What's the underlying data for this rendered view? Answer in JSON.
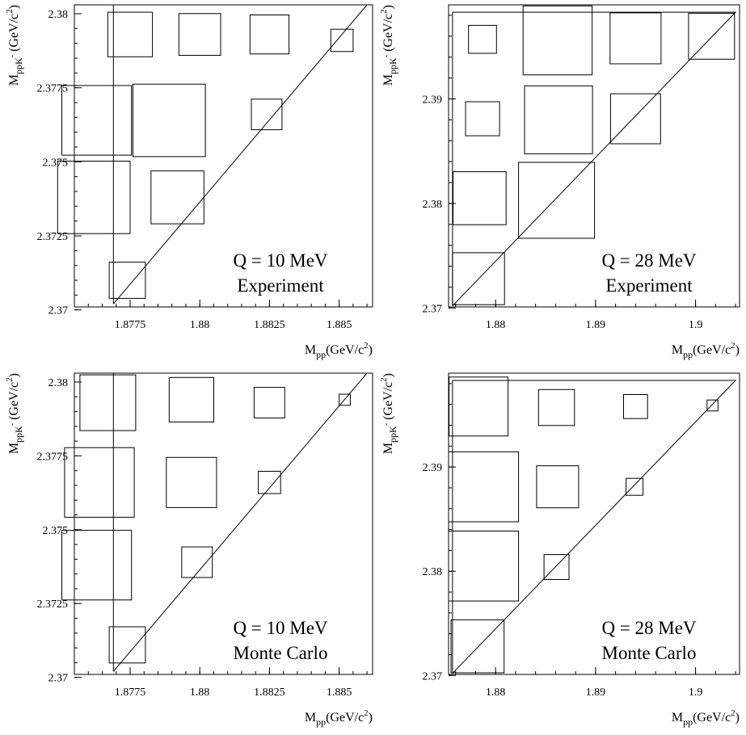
{
  "chart_data": [
    {
      "type": "box-histogram",
      "annotation_lines": [
        "Q = 10 MeV",
        "Experiment"
      ],
      "xlabel": {
        "base": "M",
        "sub": "pp",
        "rest": "(GeV/c",
        "sup": "2",
        "close": ")"
      },
      "ylabel": {
        "base": "M",
        "sub": "ppK",
        "subsup": "-",
        "rest": " (GeV/c",
        "sup": "2",
        "close": ")"
      },
      "xlim": [
        1.8755,
        1.8862
      ],
      "ylim": [
        2.3701,
        2.3803
      ],
      "x_ticks": [
        1.8775,
        1.88,
        1.8825,
        1.885
      ],
      "x_tick_labels": [
        "1.8775",
        "1.88",
        "1.8825",
        "1.885"
      ],
      "y_ticks": [
        2.37,
        2.3725,
        2.375,
        2.3775,
        2.38
      ],
      "y_tick_labels": [
        "2.37",
        "2.3725",
        "2.375",
        "2.3775",
        "2.38"
      ],
      "kinematic_boundary": {
        "x": [
          1.8769,
          1.886,
          1.8769,
          1.8769
        ],
        "y": [
          2.3702,
          2.3803,
          2.3803,
          2.3702
        ]
      },
      "boxes": [
        {
          "x": 1.8774,
          "y": 2.371,
          "size": 0.0013
        },
        {
          "x": 1.8762,
          "y": 2.3738,
          "size": 0.0026
        },
        {
          "x": 1.8763,
          "y": 2.3764,
          "size": 0.0025
        },
        {
          "x": 1.8789,
          "y": 2.3764,
          "size": 0.0026
        },
        {
          "x": 1.8792,
          "y": 2.3738,
          "size": 0.0019
        },
        {
          "x": 1.8775,
          "y": 2.3793,
          "size": 0.0016
        },
        {
          "x": 1.88,
          "y": 2.3793,
          "size": 0.0015
        },
        {
          "x": 1.8825,
          "y": 2.3793,
          "size": 0.0014
        },
        {
          "x": 1.8851,
          "y": 2.3791,
          "size": 0.0008
        },
        {
          "x": 1.8824,
          "y": 2.3766,
          "size": 0.0011
        }
      ]
    },
    {
      "type": "box-histogram",
      "annotation_lines": [
        "Q = 28 MeV",
        "Experiment"
      ],
      "xlabel": {
        "base": "M",
        "sub": "pp",
        "rest": "(GeV/c",
        "sup": "2",
        "close": ")"
      },
      "ylabel": {
        "base": "M",
        "sub": "ppK",
        "subsup": "-",
        "rest": " (GeV/c",
        "sup": "2",
        "close": ")"
      },
      "xlim": [
        1.8753,
        1.9044
      ],
      "ylim": [
        2.3701,
        2.399
      ],
      "x_ticks": [
        1.88,
        1.89,
        1.9
      ],
      "x_tick_labels": [
        "1.88",
        "1.89",
        "1.9"
      ],
      "y_ticks": [
        2.37,
        2.38,
        2.39
      ],
      "y_tick_labels": [
        "2.37",
        "2.38",
        "2.39"
      ],
      "kinematic_boundary": {
        "x": [
          1.8757,
          1.904,
          1.8757,
          1.8757
        ],
        "y": [
          2.3702,
          2.3983,
          2.3983,
          2.3702
        ]
      },
      "boxes": [
        {
          "x": 1.8783,
          "y": 2.3728,
          "size": 0.0052
        },
        {
          "x": 1.8784,
          "y": 2.3805,
          "size": 0.0053
        },
        {
          "x": 1.8787,
          "y": 2.3881,
          "size": 0.0034
        },
        {
          "x": 1.8787,
          "y": 2.3957,
          "size": 0.0028
        },
        {
          "x": 1.8861,
          "y": 2.3803,
          "size": 0.0076
        },
        {
          "x": 1.8863,
          "y": 2.388,
          "size": 0.0068
        },
        {
          "x": 1.8862,
          "y": 2.3956,
          "size": 0.0069
        },
        {
          "x": 1.894,
          "y": 2.3881,
          "size": 0.005
        },
        {
          "x": 1.894,
          "y": 2.3958,
          "size": 0.0051
        },
        {
          "x": 1.9016,
          "y": 2.396,
          "size": 0.0046
        }
      ]
    },
    {
      "type": "box-histogram",
      "annotation_lines": [
        "Q = 10 MeV",
        "Monte Carlo"
      ],
      "xlabel": {
        "base": "M",
        "sub": "pp",
        "rest": "(GeV/c",
        "sup": "2",
        "close": ")"
      },
      "ylabel": {
        "base": "M",
        "sub": "ppK",
        "subsup": "-",
        "rest": " (GeV/c",
        "sup": "2",
        "close": ")"
      },
      "xlim": [
        1.8755,
        1.8862
      ],
      "ylim": [
        2.3701,
        2.3803
      ],
      "x_ticks": [
        1.8775,
        1.88,
        1.8825,
        1.885
      ],
      "x_tick_labels": [
        "1.8775",
        "1.88",
        "1.8825",
        "1.885"
      ],
      "y_ticks": [
        2.37,
        2.3725,
        2.375,
        2.3775,
        2.38
      ],
      "y_tick_labels": [
        "2.37",
        "2.3725",
        "2.375",
        "2.3775",
        "2.38"
      ],
      "kinematic_boundary": {
        "x": [
          1.8769,
          1.886,
          1.8769,
          1.8769
        ],
        "y": [
          2.3702,
          2.3803,
          2.3803,
          2.3702
        ]
      },
      "boxes": [
        {
          "x": 1.8774,
          "y": 2.3711,
          "size": 0.0013
        },
        {
          "x": 1.8763,
          "y": 2.3738,
          "size": 0.0025
        },
        {
          "x": 1.8764,
          "y": 2.3766,
          "size": 0.0025
        },
        {
          "x": 1.8767,
          "y": 2.3793,
          "size": 0.002
        },
        {
          "x": 1.8799,
          "y": 2.3739,
          "size": 0.0011
        },
        {
          "x": 1.8797,
          "y": 2.3766,
          "size": 0.0018
        },
        {
          "x": 1.8797,
          "y": 2.3794,
          "size": 0.0016
        },
        {
          "x": 1.8825,
          "y": 2.3766,
          "size": 0.0008
        },
        {
          "x": 1.8825,
          "y": 2.3793,
          "size": 0.0011
        },
        {
          "x": 1.8852,
          "y": 2.3794,
          "size": 0.0004
        }
      ]
    },
    {
      "type": "box-histogram",
      "annotation_lines": [
        "Q = 28 MeV",
        "Monte Carlo"
      ],
      "xlabel": {
        "base": "M",
        "sub": "pp",
        "rest": "(GeV/c",
        "sup": "2",
        "close": ")"
      },
      "ylabel": {
        "base": "M",
        "sub": "ppK",
        "subsup": "-",
        "rest": " (GeV/c",
        "sup": "2",
        "close": ")"
      },
      "xlim": [
        1.8753,
        1.9044
      ],
      "ylim": [
        2.3701,
        2.399
      ],
      "x_ticks": [
        1.88,
        1.89,
        1.9
      ],
      "x_tick_labels": [
        "1.88",
        "1.89",
        "1.9"
      ],
      "y_ticks": [
        2.37,
        2.38,
        2.39
      ],
      "y_tick_labels": [
        "2.37",
        "2.38",
        "2.39"
      ],
      "kinematic_boundary": {
        "x": [
          1.8757,
          1.904,
          1.8757,
          1.8757
        ],
        "y": [
          2.3702,
          2.3983,
          2.3983,
          2.3702
        ]
      },
      "boxes": [
        {
          "x": 1.8782,
          "y": 2.3728,
          "size": 0.0053
        },
        {
          "x": 1.8788,
          "y": 2.3805,
          "size": 0.007
        },
        {
          "x": 1.8788,
          "y": 2.3881,
          "size": 0.007
        },
        {
          "x": 1.8783,
          "y": 2.3958,
          "size": 0.0059
        },
        {
          "x": 1.8861,
          "y": 2.3804,
          "size": 0.0025
        },
        {
          "x": 1.8862,
          "y": 2.3881,
          "size": 0.0042
        },
        {
          "x": 1.8861,
          "y": 2.3957,
          "size": 0.0036
        },
        {
          "x": 1.8939,
          "y": 2.3881,
          "size": 0.0017
        },
        {
          "x": 1.894,
          "y": 2.3958,
          "size": 0.0024
        },
        {
          "x": 1.9017,
          "y": 2.3959,
          "size": 0.0011
        }
      ]
    }
  ]
}
